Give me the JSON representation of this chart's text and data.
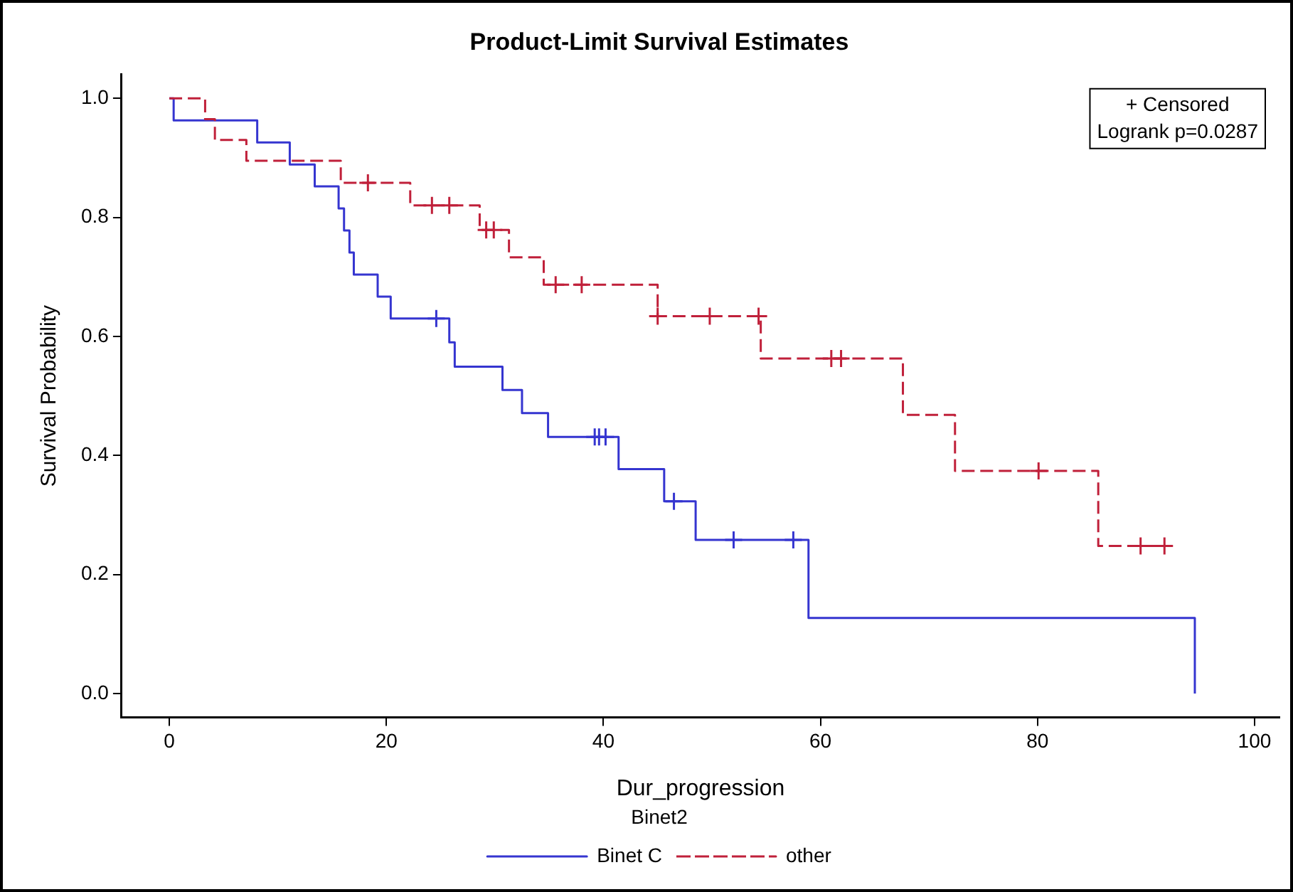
{
  "chart_data": {
    "type": "step",
    "title": "Product-Limit Survival Estimates",
    "xlabel": "Dur_progression",
    "ylabel": "Survival Probability",
    "legend_title": "Binet2",
    "legend": "bottom",
    "grid": false,
    "annotations": [
      "+ Censored",
      "Logrank p=0.0287"
    ],
    "xlim": [
      -4.4,
      102.3
    ],
    "xticks": [
      0,
      20,
      40,
      60,
      80,
      100
    ],
    "ylim": [
      -0.04,
      1.04
    ],
    "yticks": [
      {
        "value": 0,
        "label": "0.0"
      },
      {
        "value": 0.2,
        "label": "0.2"
      },
      {
        "value": 0.4,
        "label": "0.4"
      },
      {
        "value": 0.6,
        "label": "0.6"
      },
      {
        "value": 0.8,
        "label": "0.8"
      },
      {
        "value": 1,
        "label": "1.0"
      }
    ],
    "series": [
      {
        "name": "Binet C",
        "color": "#3535d0",
        "line_style": "solid",
        "x": [
          0,
          0.4,
          8.1,
          11.1,
          13.4,
          15.6,
          16.1,
          16.6,
          17.0,
          19.2,
          20.4,
          25.8,
          26.3,
          30.7,
          32.5,
          34.9,
          41.4,
          45.6,
          48.5,
          58.9,
          94.5
        ],
        "values": [
          1,
          0.963,
          0.926,
          0.889,
          0.852,
          0.815,
          0.778,
          0.741,
          0.704,
          0.667,
          0.63,
          0.59,
          0.549,
          0.51,
          0.471,
          0.431,
          0.377,
          0.323,
          0.258,
          0.127,
          0
        ]
      },
      {
        "name": "other",
        "color": "#c0203a",
        "line_style": "dashed",
        "x": [
          0,
          3.3,
          4.2,
          7.1,
          15.8,
          22.2,
          28.6,
          31.3,
          34.5,
          45.0,
          54.5,
          67.6,
          72.4,
          85.6,
          91.7
        ],
        "values": [
          1,
          0.965,
          0.93,
          0.895,
          0.858,
          0.82,
          0.779,
          0.733,
          0.687,
          0.634,
          0.563,
          0.468,
          0.374,
          0.248,
          0.248
        ]
      },
      {
        "type": "scatter",
        "marker": "cross",
        "color": "#3535d0",
        "x": [
          24.6,
          39.2,
          39.6,
          40.2,
          46.5,
          52.0,
          57.5
        ],
        "values": [
          0.63,
          0.431,
          0.431,
          0.431,
          0.323,
          0.258,
          0.258
        ]
      },
      {
        "type": "scatter",
        "marker": "cross",
        "color": "#c0203a",
        "x": [
          18.3,
          24.2,
          25.8,
          29.2,
          29.9,
          35.6,
          38.0,
          45.0,
          49.8,
          54.3,
          61.0,
          61.9,
          80.1,
          89.5,
          91.7
        ],
        "values": [
          0.858,
          0.82,
          0.82,
          0.779,
          0.779,
          0.687,
          0.687,
          0.634,
          0.634,
          0.634,
          0.563,
          0.563,
          0.374,
          0.248,
          0.248
        ]
      }
    ]
  }
}
